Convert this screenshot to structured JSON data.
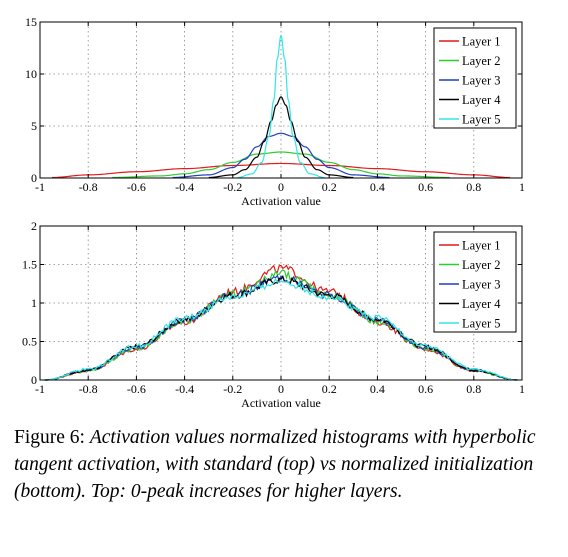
{
  "chart_data": [
    {
      "type": "line",
      "title": "",
      "xlabel": "Activation value",
      "ylabel": "",
      "xlim": [
        -1,
        1
      ],
      "ylim": [
        0,
        15
      ],
      "xticks": [
        "-1",
        "-0.8",
        "-0.6",
        "-0.4",
        "-0.2",
        "0",
        "0.2",
        "0.4",
        "0.6",
        "0.8",
        "1"
      ],
      "yticks": [
        "0",
        "5",
        "10",
        "15"
      ],
      "grid": true,
      "legend": "top-right",
      "series": [
        {
          "name": "Layer 1",
          "color": "#e41a1c",
          "x": [
            -0.95,
            -0.8,
            -0.6,
            -0.4,
            -0.2,
            0,
            0.2,
            0.4,
            0.6,
            0.8,
            0.95
          ],
          "y": [
            0.05,
            0.3,
            0.6,
            0.9,
            1.2,
            1.4,
            1.2,
            0.9,
            0.6,
            0.3,
            0.05
          ]
        },
        {
          "name": "Layer 2",
          "color": "#2ecc2e",
          "x": [
            -0.7,
            -0.5,
            -0.4,
            -0.3,
            -0.2,
            -0.1,
            0,
            0.1,
            0.2,
            0.3,
            0.4,
            0.5,
            0.7
          ],
          "y": [
            0.05,
            0.2,
            0.4,
            0.8,
            1.5,
            2.3,
            2.5,
            2.3,
            1.5,
            0.8,
            0.4,
            0.2,
            0.05
          ]
        },
        {
          "name": "Layer 3",
          "color": "#1f3fbf",
          "x": [
            -0.45,
            -0.3,
            -0.2,
            -0.15,
            -0.1,
            -0.05,
            0,
            0.05,
            0.1,
            0.15,
            0.2,
            0.3,
            0.45
          ],
          "y": [
            0.05,
            0.3,
            1.0,
            1.8,
            3.0,
            4.0,
            4.3,
            4.0,
            3.0,
            1.8,
            1.0,
            0.3,
            0.05
          ]
        },
        {
          "name": "Layer 4",
          "color": "#000000",
          "x": [
            -0.3,
            -0.2,
            -0.15,
            -0.1,
            -0.07,
            -0.04,
            -0.02,
            0,
            0.02,
            0.04,
            0.07,
            0.1,
            0.15,
            0.2,
            0.3
          ],
          "y": [
            0.05,
            0.3,
            0.8,
            2.0,
            3.5,
            5.5,
            7.0,
            7.8,
            7.0,
            5.5,
            3.5,
            2.0,
            0.8,
            0.3,
            0.05
          ]
        },
        {
          "name": "Layer 5",
          "color": "#33e6e6",
          "x": [
            -0.18,
            -0.12,
            -0.08,
            -0.05,
            -0.03,
            -0.015,
            0,
            0.015,
            0.03,
            0.05,
            0.08,
            0.12,
            0.18
          ],
          "y": [
            0.05,
            0.4,
            1.5,
            4.0,
            7.5,
            11.5,
            13.7,
            11.5,
            7.5,
            4.0,
            1.5,
            0.4,
            0.05
          ]
        }
      ]
    },
    {
      "type": "line",
      "title": "",
      "xlabel": "Activation value",
      "ylabel": "",
      "xlim": [
        -1,
        1
      ],
      "ylim": [
        0,
        2
      ],
      "xticks": [
        "-1",
        "-0.8",
        "-0.6",
        "-0.4",
        "-0.2",
        "0",
        "0.2",
        "0.4",
        "0.6",
        "0.8",
        "1"
      ],
      "yticks": [
        "0",
        "0.5",
        "1",
        "1.5",
        "2"
      ],
      "grid": true,
      "legend": "top-right",
      "series": [
        {
          "name": "Layer 1",
          "color": "#e41a1c",
          "x": [
            -0.98,
            -0.8,
            -0.6,
            -0.4,
            -0.2,
            0,
            0.2,
            0.4,
            0.6,
            0.8,
            0.98
          ],
          "y": [
            0.0,
            0.12,
            0.4,
            0.75,
            1.15,
            1.45,
            1.15,
            0.75,
            0.4,
            0.12,
            0.0
          ]
        },
        {
          "name": "Layer 2",
          "color": "#2ecc2e",
          "x": [
            -0.98,
            -0.8,
            -0.6,
            -0.4,
            -0.2,
            0,
            0.2,
            0.4,
            0.6,
            0.8,
            0.98
          ],
          "y": [
            0.0,
            0.12,
            0.41,
            0.76,
            1.12,
            1.38,
            1.12,
            0.76,
            0.41,
            0.12,
            0.0
          ]
        },
        {
          "name": "Layer 3",
          "color": "#1f3fbf",
          "x": [
            -0.98,
            -0.8,
            -0.6,
            -0.4,
            -0.2,
            0,
            0.2,
            0.4,
            0.6,
            0.8,
            0.98
          ],
          "y": [
            0.0,
            0.13,
            0.42,
            0.78,
            1.1,
            1.33,
            1.1,
            0.78,
            0.42,
            0.13,
            0.0
          ]
        },
        {
          "name": "Layer 4",
          "color": "#000000",
          "x": [
            -0.98,
            -0.8,
            -0.6,
            -0.4,
            -0.2,
            0,
            0.2,
            0.4,
            0.6,
            0.8,
            0.98
          ],
          "y": [
            0.0,
            0.13,
            0.43,
            0.79,
            1.1,
            1.3,
            1.1,
            0.79,
            0.43,
            0.13,
            0.0
          ]
        },
        {
          "name": "Layer 5",
          "color": "#33e6e6",
          "x": [
            -0.98,
            -0.8,
            -0.6,
            -0.4,
            -0.2,
            0,
            0.2,
            0.4,
            0.6,
            0.8,
            0.98
          ],
          "y": [
            0.0,
            0.14,
            0.44,
            0.8,
            1.08,
            1.28,
            1.08,
            0.8,
            0.44,
            0.14,
            0.0
          ]
        }
      ]
    }
  ],
  "caption": {
    "lead": "Figure 6:",
    "body": "Activation values normalized histograms with hyperbolic tangent activation, with standard (top) vs normalized initialization (bottom). Top: 0-peak increases for higher layers."
  }
}
